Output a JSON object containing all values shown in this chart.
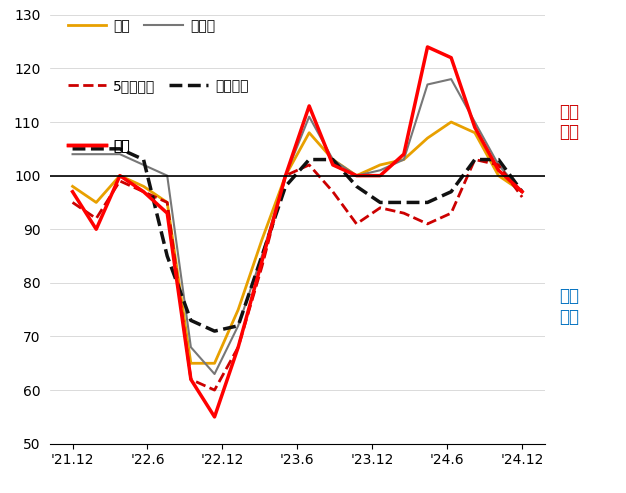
{
  "x_tick_labels": [
    "'21.12",
    "'22.6",
    "'22.12",
    "'23.6",
    "'23.12",
    "'24.6",
    "'24.12"
  ],
  "ylim": [
    50,
    130
  ],
  "yticks": [
    50,
    60,
    70,
    80,
    90,
    100,
    110,
    120,
    130
  ],
  "hline": 100,
  "annotation_rise": "상승\n전망",
  "annotation_fall": "하락\n전망",
  "series": {
    "전국": {
      "color": "#E8A000",
      "linestyle": "solid",
      "linewidth": 2.0,
      "values": [
        98,
        95,
        100,
        98,
        95,
        65,
        65,
        75,
        88,
        100,
        108,
        103,
        100,
        102,
        103,
        107,
        110,
        108,
        100,
        97
      ]
    },
    "수도권": {
      "color": "#777777",
      "linestyle": "solid",
      "linewidth": 1.5,
      "values": [
        104,
        104,
        104,
        102,
        100,
        68,
        63,
        72,
        85,
        100,
        111,
        103,
        100,
        101,
        103,
        117,
        118,
        110,
        102,
        97
      ]
    },
    "5개광역시": {
      "color": "#CC0000",
      "linestyle": "dashed",
      "linewidth": 2.0,
      "values": [
        95,
        92,
        99,
        97,
        95,
        62,
        60,
        68,
        83,
        100,
        102,
        97,
        91,
        94,
        93,
        91,
        93,
        103,
        102,
        96
      ]
    },
    "기타지방": {
      "color": "#111111",
      "linestyle": "dashed",
      "linewidth": 2.5,
      "values": [
        105,
        105,
        105,
        103,
        85,
        73,
        71,
        72,
        85,
        98,
        103,
        103,
        98,
        95,
        95,
        95,
        97,
        103,
        103,
        97
      ]
    },
    "서울": {
      "color": "#FF0000",
      "linestyle": "solid",
      "linewidth": 2.5,
      "values": [
        97,
        90,
        100,
        97,
        93,
        62,
        55,
        68,
        84,
        100,
        113,
        102,
        100,
        100,
        104,
        124,
        122,
        109,
        101,
        97
      ]
    }
  },
  "legend_order": [
    "전국",
    "수도권",
    "5개광역시",
    "기타지방",
    "서울"
  ],
  "rise_color": "#CC0000",
  "fall_color": "#0070C0",
  "background_color": "#ffffff"
}
